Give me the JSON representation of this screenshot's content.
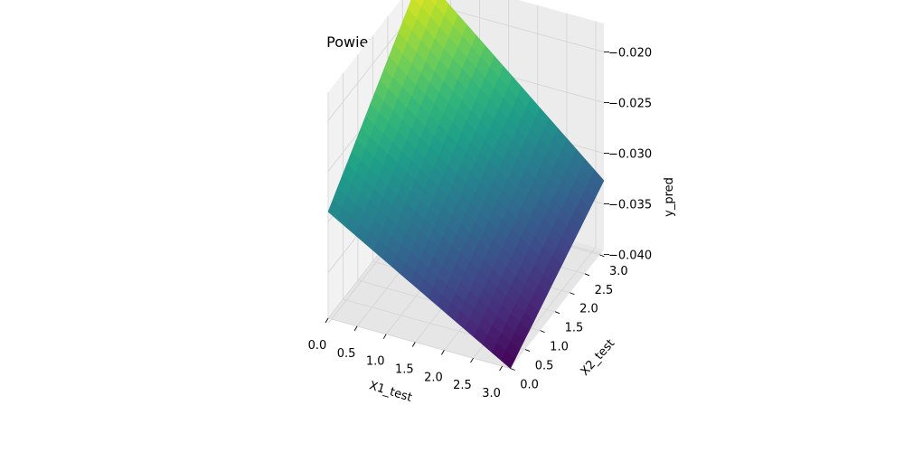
{
  "chart_data": {
    "type": "surface",
    "title": "Powierzchnia aproksymacji przez MLP",
    "xlabel": "X1_test",
    "ylabel": "X2_test",
    "zlabel": "y_pred",
    "xlim": [
      0.0,
      3.14
    ],
    "ylim": [
      0.0,
      3.14
    ],
    "zlim": [
      -0.0395,
      -0.0172
    ],
    "x_ticks": [
      "0.0",
      "0.5",
      "1.0",
      "1.5",
      "2.0",
      "2.5",
      "3.0"
    ],
    "x_tick_values": [
      0.0,
      0.5,
      1.0,
      1.5,
      2.0,
      2.5,
      3.0
    ],
    "y_ticks": [
      "0.0",
      "0.5",
      "1.0",
      "1.5",
      "2.0",
      "2.5",
      "3.0"
    ],
    "y_tick_values": [
      0.0,
      0.5,
      1.0,
      1.5,
      2.0,
      2.5,
      3.0
    ],
    "z_ticks": [
      "−0.020",
      "−0.025",
      "−0.030",
      "−0.035",
      "−0.040"
    ],
    "z_tick_values": [
      -0.02,
      -0.025,
      -0.03,
      -0.035,
      -0.04
    ],
    "corners": [
      {
        "x": 0.0,
        "y": 0.0,
        "z": -0.029
      },
      {
        "x": 3.14,
        "y": 0.0,
        "z": -0.0395
      },
      {
        "x": 3.14,
        "y": 3.14,
        "z": -0.0327
      },
      {
        "x": 0.0,
        "y": 3.14,
        "z": -0.0172
      }
    ],
    "colormap": "viridis",
    "pane_color": "#f2f2f2",
    "grid": true
  }
}
